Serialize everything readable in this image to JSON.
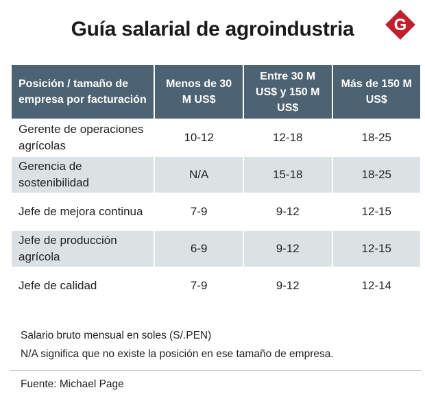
{
  "title": "Guía salarial de agroindustria",
  "logo": {
    "icon": "gestion-logo-icon",
    "letter": "G",
    "color": "#c0202e"
  },
  "colors": {
    "header_bg": "#4d6272",
    "shade_bg": "#dce1e4"
  },
  "chart_data": {
    "type": "table",
    "title": "Guía salarial de agroindustria",
    "columns": [
      "Posición / tamaño de empresa por facturación",
      "Menos de 30 M US$",
      "Entre 30 M US$ y 150 M US$",
      "Más de 150 M US$"
    ],
    "rows": [
      [
        "Gerente de operaciones agrícolas",
        "10-12",
        "12-18",
        "18-25"
      ],
      [
        "Gerencia de sostenibilidad",
        "N/A",
        "15-18",
        "18-25"
      ],
      [
        "Jefe de mejora continua",
        "7-9",
        "9-12",
        "12-15"
      ],
      [
        "Jefe de producción agrícola",
        "6-9",
        "9-12",
        "12-15"
      ],
      [
        "Jefe de calidad",
        "7-9",
        "9-12",
        "12-14"
      ]
    ],
    "notes": [
      "Salario bruto mensual en soles (S/.PEN)",
      "N/A significa que no existe la posición en ese tamaño de empresa."
    ],
    "source": "Fuente: Michael Page"
  }
}
